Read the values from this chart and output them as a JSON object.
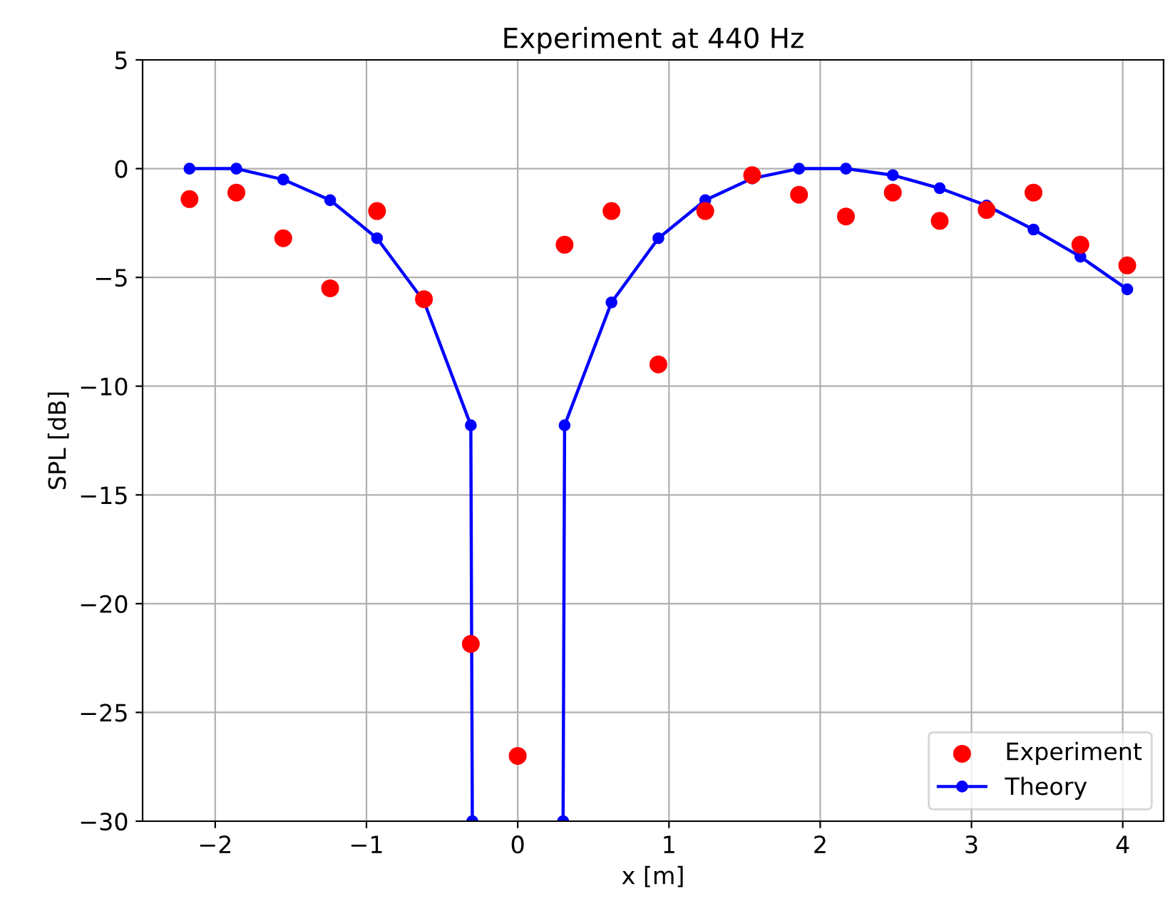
{
  "chart_data": {
    "type": "scatter",
    "title": "Experiment at 440 Hz",
    "xlabel": "x [m]",
    "ylabel": "SPL [dB]",
    "xlim": [
      -2.48,
      4.27
    ],
    "ylim": [
      -30,
      5
    ],
    "xticks": [
      {
        "value": -2,
        "label": "−2"
      },
      {
        "value": -1,
        "label": "−1"
      },
      0,
      1,
      2,
      3,
      4
    ],
    "yticks": [
      {
        "value": -30,
        "label": "−30"
      },
      {
        "value": -25,
        "label": "−25"
      },
      {
        "value": -20,
        "label": "−20"
      },
      {
        "value": -15,
        "label": "−15"
      },
      {
        "value": -10,
        "label": "−10"
      },
      {
        "value": -5,
        "label": "−5"
      },
      0,
      5
    ],
    "grid": true,
    "legend": "bottom right",
    "series": [
      {
        "name": "Experiment",
        "color": "#ff0000",
        "marker": "circle",
        "x": [
          -2.17,
          -1.86,
          -1.55,
          -1.24,
          -0.93,
          -0.62,
          -0.31,
          0,
          0.31,
          0.62,
          0.93,
          1.24,
          1.55,
          1.86,
          2.17,
          2.48,
          2.79,
          3.1,
          3.41,
          3.72,
          4.03
        ],
        "values": [
          -1.4,
          -1.1,
          -3.2,
          -5.5,
          -1.95,
          -6.0,
          -21.85,
          -27.0,
          -3.5,
          -1.95,
          -9.0,
          -1.95,
          -0.3,
          -1.2,
          -2.2,
          -1.1,
          -2.4,
          -1.9,
          -1.1,
          -3.5,
          -4.45
        ]
      },
      {
        "name": "Theory",
        "type": "line",
        "color": "#0000ff",
        "marker": "circle",
        "line_style": "solid",
        "x": [
          -2.17,
          -1.86,
          -1.55,
          -1.24,
          -0.93,
          -0.62,
          -0.31,
          -0.3,
          0,
          0.3,
          0.31,
          0.62,
          0.93,
          1.24,
          1.55,
          1.86,
          2.17,
          2.48,
          2.79,
          3.1,
          3.41,
          3.72,
          4.03
        ],
        "values": [
          0,
          0,
          -0.5,
          -1.45,
          -3.2,
          -6.1,
          -11.8,
          -30,
          null,
          -30,
          -11.8,
          -6.15,
          -3.2,
          -1.45,
          -0.45,
          0,
          0,
          -0.3,
          -0.9,
          -1.7,
          -2.8,
          -4.05,
          -5.55
        ]
      }
    ]
  }
}
